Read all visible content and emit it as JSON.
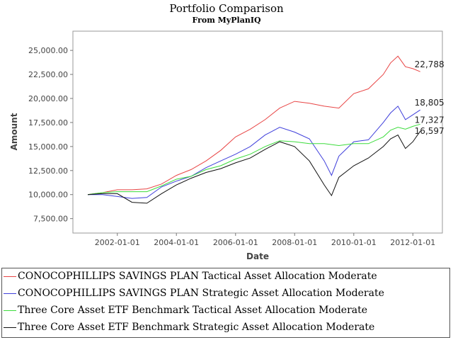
{
  "chart_data": {
    "type": "line",
    "title": "Portfolio Comparison",
    "subtitle": "From MyPlanIQ",
    "xlabel": "Date",
    "ylabel": "Amount",
    "x_ticks": [
      "2002-01-01",
      "2004-01-01",
      "2006-01-01",
      "2008-01-01",
      "2010-01-01",
      "2012-01-01"
    ],
    "y_ticks": [
      "7,500.00",
      "10,000.00",
      "12,500.00",
      "15,000.00",
      "17,500.00",
      "20,000.00",
      "22,500.00",
      "25,000.00"
    ],
    "ylim": [
      6000,
      27000
    ],
    "xlim": [
      "2000-07-01",
      "2012-12-31"
    ],
    "grid": false,
    "legend_position": "bottom",
    "series": [
      {
        "name": "CONOCOPHILLIPS SAVINGS PLAN Tactical Asset Allocation Moderate",
        "color": "#e84545",
        "end_label": "22,788",
        "points": [
          [
            "2001-01-01",
            10000
          ],
          [
            "2001-07-01",
            10200
          ],
          [
            "2002-01-01",
            10500
          ],
          [
            "2002-07-01",
            10500
          ],
          [
            "2003-01-01",
            10600
          ],
          [
            "2003-07-01",
            11100
          ],
          [
            "2004-01-01",
            12000
          ],
          [
            "2004-07-01",
            12600
          ],
          [
            "2005-01-01",
            13500
          ],
          [
            "2005-07-01",
            14600
          ],
          [
            "2006-01-01",
            16000
          ],
          [
            "2006-07-01",
            16800
          ],
          [
            "2007-01-01",
            17800
          ],
          [
            "2007-07-01",
            19000
          ],
          [
            "2008-01-01",
            19700
          ],
          [
            "2008-07-01",
            19500
          ],
          [
            "2009-01-01",
            19200
          ],
          [
            "2009-07-01",
            19000
          ],
          [
            "2010-01-01",
            20500
          ],
          [
            "2010-07-01",
            21000
          ],
          [
            "2011-01-01",
            22500
          ],
          [
            "2011-04-01",
            23700
          ],
          [
            "2011-07-01",
            24400
          ],
          [
            "2011-10-01",
            23300
          ],
          [
            "2012-01-01",
            23100
          ],
          [
            "2012-04-01",
            22788
          ]
        ]
      },
      {
        "name": "CONOCOPHILLIPS SAVINGS PLAN Strategic Asset Allocation Moderate",
        "color": "#3f3fdb",
        "end_label": "18,805",
        "points": [
          [
            "2001-01-01",
            10000
          ],
          [
            "2001-07-01",
            10000
          ],
          [
            "2002-01-01",
            9800
          ],
          [
            "2002-07-01",
            9600
          ],
          [
            "2003-01-01",
            9700
          ],
          [
            "2003-07-01",
            10800
          ],
          [
            "2004-01-01",
            11400
          ],
          [
            "2004-07-01",
            11900
          ],
          [
            "2005-01-01",
            12800
          ],
          [
            "2005-07-01",
            13500
          ],
          [
            "2006-01-01",
            14200
          ],
          [
            "2006-07-01",
            15000
          ],
          [
            "2007-01-01",
            16200
          ],
          [
            "2007-07-01",
            17000
          ],
          [
            "2008-01-01",
            16500
          ],
          [
            "2008-07-01",
            15800
          ],
          [
            "2009-01-01",
            13500
          ],
          [
            "2009-04-01",
            12000
          ],
          [
            "2009-07-01",
            14000
          ],
          [
            "2010-01-01",
            15500
          ],
          [
            "2010-07-01",
            15700
          ],
          [
            "2011-01-01",
            17500
          ],
          [
            "2011-04-01",
            18500
          ],
          [
            "2011-07-01",
            19200
          ],
          [
            "2011-10-01",
            17800
          ],
          [
            "2012-01-01",
            18300
          ],
          [
            "2012-04-01",
            18805
          ]
        ]
      },
      {
        "name": "Three Core Asset ETF Benchmark Tactical Asset Allocation Moderate",
        "color": "#3cdc3c",
        "end_label": "17,327",
        "points": [
          [
            "2001-01-01",
            10000
          ],
          [
            "2001-07-01",
            10200
          ],
          [
            "2002-01-01",
            10300
          ],
          [
            "2002-07-01",
            10300
          ],
          [
            "2003-01-01",
            10300
          ],
          [
            "2003-07-01",
            10900
          ],
          [
            "2004-01-01",
            11600
          ],
          [
            "2004-07-01",
            11900
          ],
          [
            "2005-01-01",
            12600
          ],
          [
            "2005-07-01",
            13000
          ],
          [
            "2006-01-01",
            13700
          ],
          [
            "2006-07-01",
            14200
          ],
          [
            "2007-01-01",
            15000
          ],
          [
            "2007-07-01",
            15600
          ],
          [
            "2008-01-01",
            15500
          ],
          [
            "2008-07-01",
            15300
          ],
          [
            "2009-01-01",
            15300
          ],
          [
            "2009-07-01",
            15100
          ],
          [
            "2010-01-01",
            15300
          ],
          [
            "2010-07-01",
            15300
          ],
          [
            "2011-01-01",
            16000
          ],
          [
            "2011-04-01",
            16700
          ],
          [
            "2011-07-01",
            17000
          ],
          [
            "2011-10-01",
            16800
          ],
          [
            "2012-01-01",
            17100
          ],
          [
            "2012-04-01",
            17327
          ]
        ]
      },
      {
        "name": "Three Core Asset ETF Benchmark Strategic Asset Allocation Moderate",
        "color": "#111111",
        "end_label": "16,597",
        "points": [
          [
            "2001-01-01",
            10000
          ],
          [
            "2001-07-01",
            10100
          ],
          [
            "2002-01-01",
            10100
          ],
          [
            "2002-07-01",
            9200
          ],
          [
            "2003-01-01",
            9100
          ],
          [
            "2003-07-01",
            10100
          ],
          [
            "2004-01-01",
            11000
          ],
          [
            "2004-07-01",
            11700
          ],
          [
            "2005-01-01",
            12300
          ],
          [
            "2005-07-01",
            12700
          ],
          [
            "2006-01-01",
            13300
          ],
          [
            "2006-07-01",
            13800
          ],
          [
            "2007-01-01",
            14700
          ],
          [
            "2007-07-01",
            15500
          ],
          [
            "2008-01-01",
            15000
          ],
          [
            "2008-07-01",
            13500
          ],
          [
            "2009-01-01",
            11000
          ],
          [
            "2009-04-01",
            9900
          ],
          [
            "2009-07-01",
            11800
          ],
          [
            "2010-01-01",
            13000
          ],
          [
            "2010-07-01",
            13800
          ],
          [
            "2011-01-01",
            15000
          ],
          [
            "2011-04-01",
            15800
          ],
          [
            "2011-07-01",
            16200
          ],
          [
            "2011-10-01",
            14800
          ],
          [
            "2012-01-01",
            15500
          ],
          [
            "2012-04-01",
            16597
          ]
        ]
      }
    ]
  }
}
